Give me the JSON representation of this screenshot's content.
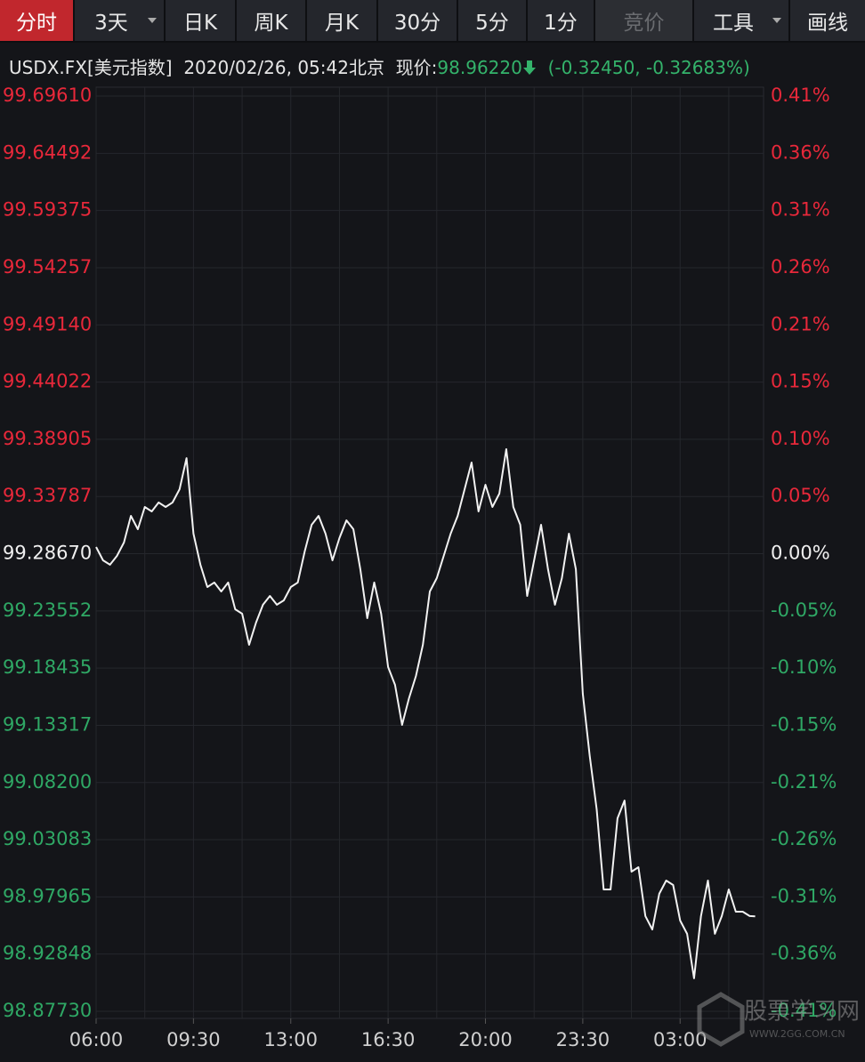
{
  "toolbar": [
    "分时",
    "3天",
    "日K",
    "周K",
    "月K",
    "30分",
    "5分",
    "1分",
    "竞价",
    "工具",
    "画线"
  ],
  "quote": {
    "symbol": "USDX.FX[美元指数]",
    "datetime": "2020/02/26, 05:42北京",
    "price_label": "现价:",
    "price": "98.96220",
    "change": "(-0.32450, -0.32683%)"
  },
  "watermark": {
    "text": "股票学习网",
    "url": "WWW.2GG.COM.CN"
  },
  "chart_data": {
    "type": "line",
    "color": "#f2f2f2",
    "grid": true,
    "up_color": "#e8283a",
    "down_color": "#2fa865",
    "flat_color": "#f0f0f0",
    "x": [
      "06:00",
      "06:15",
      "06:30",
      "06:45",
      "07:00",
      "07:15",
      "07:30",
      "07:45",
      "08:00",
      "08:15",
      "08:30",
      "08:45",
      "09:00",
      "09:15",
      "09:30",
      "09:45",
      "10:00",
      "10:15",
      "10:30",
      "10:45",
      "11:00",
      "11:15",
      "11:30",
      "11:45",
      "12:00",
      "12:15",
      "12:30",
      "12:45",
      "13:00",
      "13:15",
      "13:30",
      "13:45",
      "14:00",
      "14:15",
      "14:30",
      "14:45",
      "15:00",
      "15:15",
      "15:30",
      "15:45",
      "16:00",
      "16:15",
      "16:30",
      "16:45",
      "17:00",
      "17:15",
      "17:30",
      "17:45",
      "18:00",
      "18:15",
      "18:30",
      "18:45",
      "19:00",
      "19:15",
      "19:30",
      "19:45",
      "20:00",
      "20:15",
      "20:30",
      "20:45",
      "21:00",
      "21:15",
      "21:30",
      "21:45",
      "22:00",
      "22:15",
      "22:30",
      "22:45",
      "23:00",
      "23:15",
      "23:30",
      "23:45",
      "00:00",
      "00:15",
      "00:30",
      "00:45",
      "01:00",
      "01:15",
      "01:30",
      "01:45",
      "02:00",
      "02:15",
      "02:30",
      "02:45",
      "03:00",
      "03:15",
      "03:30",
      "03:45",
      "04:00",
      "04:15",
      "04:30",
      "04:45",
      "05:00",
      "05:15",
      "05:30",
      "05:42"
    ],
    "values": [
      99.2927,
      99.2807,
      99.2768,
      99.2847,
      99.2967,
      99.3205,
      99.3086,
      99.3285,
      99.3245,
      99.3325,
      99.3285,
      99.3325,
      99.3444,
      99.3722,
      99.3046,
      99.2768,
      99.2569,
      99.2609,
      99.2529,
      99.2609,
      99.237,
      99.233,
      99.2052,
      99.225,
      99.241,
      99.2489,
      99.241,
      99.2449,
      99.2569,
      99.2609,
      99.2887,
      99.3126,
      99.3205,
      99.3046,
      99.2807,
      99.3006,
      99.3165,
      99.3086,
      99.2728,
      99.229,
      99.2609,
      99.233,
      99.1853,
      99.1693,
      99.1335,
      99.1574,
      99.1773,
      99.2052,
      99.2529,
      99.2648,
      99.2847,
      99.3046,
      99.3205,
      99.3444,
      99.3683,
      99.3245,
      99.3484,
      99.3285,
      99.3404,
      99.3802,
      99.3285,
      99.3126,
      99.2489,
      99.2807,
      99.3126,
      99.2728,
      99.241,
      99.2648,
      99.3046,
      99.2728,
      99.1614,
      99.1057,
      99.0579,
      98.9863,
      98.9863,
      99.05,
      99.0659,
      99.0022,
      99.0062,
      98.9625,
      98.9505,
      98.9824,
      98.9943,
      98.9903,
      98.9585,
      98.9466,
      98.9068,
      98.9625,
      98.9943,
      98.9466,
      98.9625,
      98.9863,
      98.9664,
      98.9664,
      98.9625,
      98.9622
    ],
    "xticks": [
      "06:00",
      "09:30",
      "13:00",
      "16:30",
      "20:00",
      "23:30",
      "03:00"
    ],
    "ylim": [
      98.8773,
      99.6961
    ],
    "yticks": [
      {
        "value": 99.6961,
        "label": "99.69610"
      },
      99.64492,
      99.59375,
      99.54257,
      {
        "value": 99.4914,
        "label": "99.49140"
      },
      99.44022,
      99.38905,
      99.33787,
      {
        "value": 99.2867,
        "label": "99.28670"
      },
      99.23552,
      99.18435,
      99.13317,
      {
        "value": 99.082,
        "label": "99.08200"
      },
      99.03083,
      98.97965,
      98.92848,
      {
        "value": 98.8773,
        "label": "98.87730"
      }
    ],
    "y2lim": [
      -0.4124,
      0.4124
    ],
    "y2ticks": [
      {
        "value": 0.4124,
        "label": "0.41%"
      },
      {
        "value": 0.3608,
        "label": "0.36%"
      },
      {
        "value": 0.3093,
        "label": "0.31%"
      },
      {
        "value": 0.2577,
        "label": "0.26%"
      },
      {
        "value": 0.2062,
        "label": "0.21%"
      },
      {
        "value": 0.1546,
        "label": "0.15%"
      },
      {
        "value": 0.1031,
        "label": "0.10%"
      },
      {
        "value": 0.0515,
        "label": "0.05%"
      },
      {
        "value": 0,
        "label": "0.00%"
      },
      {
        "value": -0.0515,
        "label": "-0.05%"
      },
      {
        "value": -0.1031,
        "label": "-0.10%"
      },
      {
        "value": -0.1546,
        "label": "-0.15%"
      },
      {
        "value": -0.2062,
        "label": "-0.21%"
      },
      {
        "value": -0.2577,
        "label": "-0.26%"
      },
      {
        "value": -0.3093,
        "label": "-0.31%"
      },
      {
        "value": -0.3608,
        "label": "-0.36%"
      },
      {
        "value": -0.4124,
        "label": "-0.41%"
      }
    ]
  }
}
